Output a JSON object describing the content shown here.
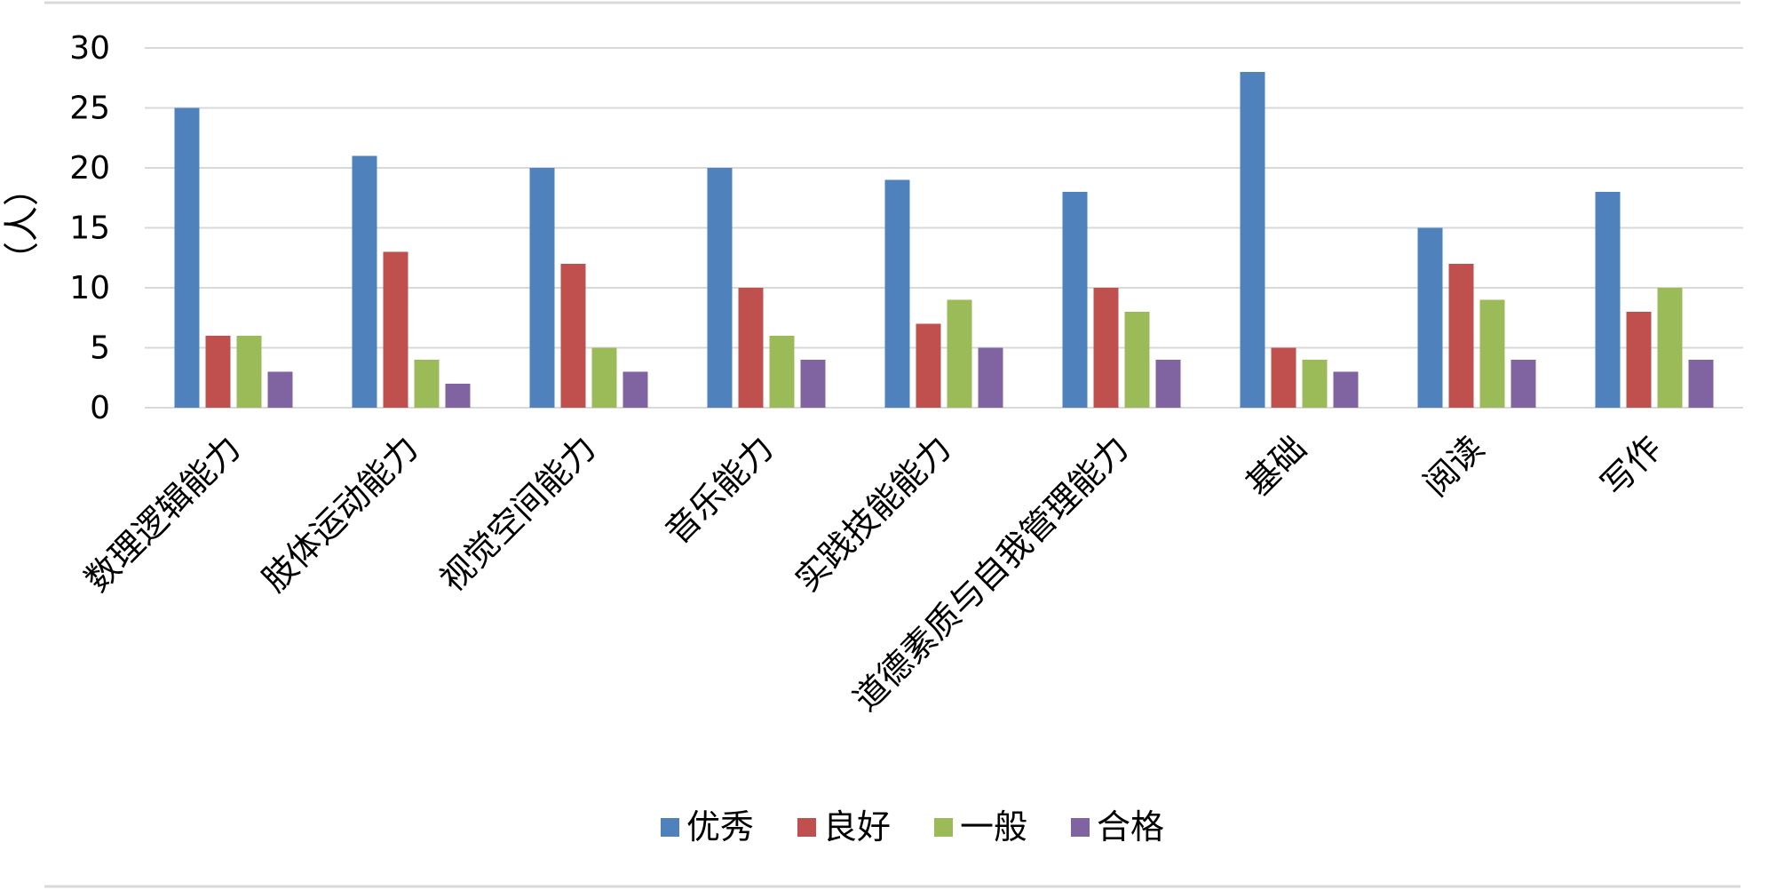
{
  "chart_data": {
    "type": "bar",
    "title": "",
    "xlabel": "",
    "ylabel": "（人）",
    "ylim": [
      0,
      30
    ],
    "yticks": [
      0,
      5,
      10,
      15,
      20,
      25,
      30
    ],
    "grid": true,
    "legend_position": "bottom",
    "categories": [
      "数理逻辑能力",
      "肢体运动能力",
      "视觉空间能力",
      "音乐能力",
      "实践技能能力",
      "道德素质与自我管理能力",
      "基础",
      "阅读",
      "写作"
    ],
    "series": [
      {
        "name": "优秀",
        "color": "#4F81BD",
        "values": [
          25,
          21,
          20,
          20,
          19,
          18,
          28,
          15,
          18
        ]
      },
      {
        "name": "良好",
        "color": "#C0504D",
        "values": [
          6,
          13,
          12,
          10,
          7,
          10,
          5,
          12,
          8
        ]
      },
      {
        "name": "一般",
        "color": "#9BBB59",
        "values": [
          6,
          4,
          5,
          6,
          9,
          8,
          4,
          9,
          10
        ]
      },
      {
        "name": "合格",
        "color": "#8064A2",
        "values": [
          3,
          2,
          3,
          4,
          5,
          4,
          3,
          4,
          4
        ]
      }
    ]
  }
}
